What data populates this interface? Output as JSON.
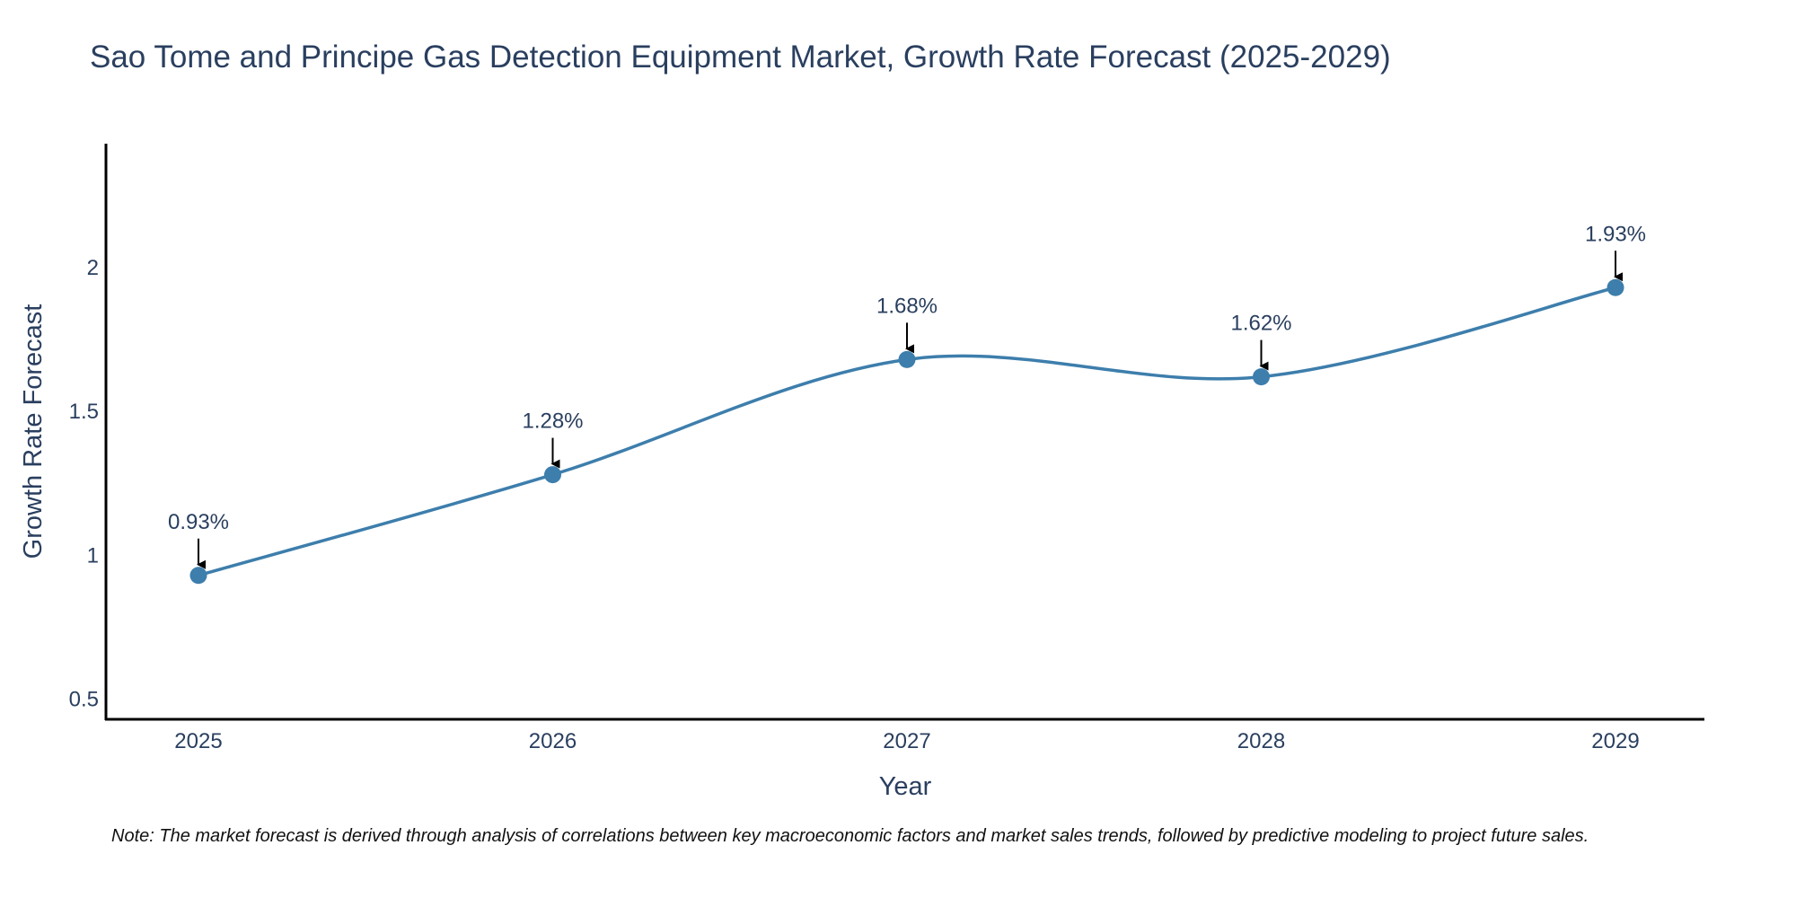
{
  "chart_data": {
    "type": "line",
    "title": "Sao Tome and Principe Gas Detection Equipment Market, Growth Rate Forecast (2025-2029)",
    "xlabel": "Year",
    "ylabel": "Growth Rate Forecast",
    "categories": [
      "2025",
      "2026",
      "2027",
      "2028",
      "2029"
    ],
    "series": [
      {
        "name": "Growth Rate Forecast",
        "values": [
          0.93,
          1.28,
          1.68,
          1.62,
          1.93
        ],
        "color": "#3d7eac"
      }
    ],
    "data_labels": [
      "0.93%",
      "1.28%",
      "1.68%",
      "1.62%",
      "1.93%"
    ],
    "y_ticks": [
      0.5,
      1,
      1.5,
      2
    ],
    "y_tick_labels": [
      "0.5",
      "1",
      "1.5",
      "2"
    ],
    "ylim": [
      0.43,
      2.43
    ],
    "grid": false,
    "note": "Note: The market forecast is derived through analysis of correlations between key macroeconomic factors and market sales trends, followed by predictive modeling to project future sales."
  }
}
